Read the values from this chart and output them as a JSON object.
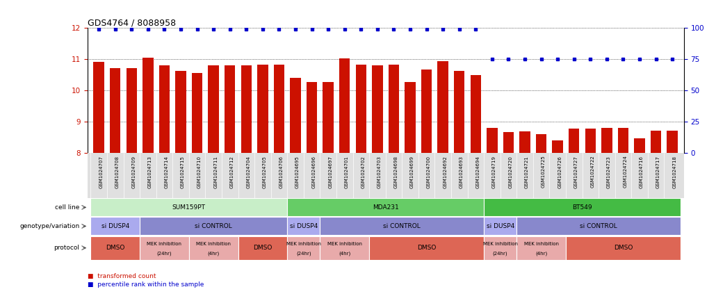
{
  "title": "GDS4764 / 8088958",
  "samples": [
    "GSM1024707",
    "GSM1024708",
    "GSM1024709",
    "GSM1024713",
    "GSM1024714",
    "GSM1024715",
    "GSM1024710",
    "GSM1024711",
    "GSM1024712",
    "GSM1024704",
    "GSM1024705",
    "GSM1024706",
    "GSM1024695",
    "GSM1024696",
    "GSM1024697",
    "GSM1024701",
    "GSM1024702",
    "GSM1024703",
    "GSM1024698",
    "GSM1024699",
    "GSM1024700",
    "GSM1024692",
    "GSM1024693",
    "GSM1024694",
    "GSM1024719",
    "GSM1024720",
    "GSM1024721",
    "GSM1024725",
    "GSM1024726",
    "GSM1024727",
    "GSM1024722",
    "GSM1024723",
    "GSM1024724",
    "GSM1024716",
    "GSM1024717",
    "GSM1024718"
  ],
  "bar_values": [
    10.92,
    10.72,
    10.72,
    11.05,
    10.8,
    10.62,
    10.57,
    10.8,
    10.8,
    10.8,
    10.82,
    10.82,
    10.4,
    10.28,
    10.28,
    11.02,
    10.82,
    10.8,
    10.82,
    10.28,
    10.68,
    10.95,
    10.62,
    10.5,
    8.82,
    8.68,
    8.7,
    8.62,
    8.4,
    8.78,
    8.78,
    8.82,
    8.82,
    8.48,
    8.72,
    8.72
  ],
  "percentile_values": [
    99,
    99,
    99,
    99,
    99,
    99,
    99,
    99,
    99,
    99,
    99,
    99,
    99,
    99,
    99,
    99,
    99,
    99,
    99,
    99,
    99,
    99,
    99,
    99,
    75,
    75,
    75,
    75,
    75,
    75,
    75,
    75,
    75,
    75,
    75,
    75
  ],
  "bar_color": "#cc1100",
  "dot_color": "#0000cc",
  "ylim_left": [
    8,
    12
  ],
  "ylim_right": [
    0,
    100
  ],
  "yticks_left": [
    8,
    9,
    10,
    11,
    12
  ],
  "yticks_right": [
    0,
    25,
    50,
    75,
    100
  ],
  "cell_lines": [
    {
      "label": "SUM159PT",
      "start": 0,
      "end": 11,
      "color": "#c8eec8"
    },
    {
      "label": "MDA231",
      "start": 12,
      "end": 23,
      "color": "#66cc66"
    },
    {
      "label": "BT549",
      "start": 24,
      "end": 35,
      "color": "#44bb44"
    }
  ],
  "genotypes": [
    {
      "label": "si DUSP4",
      "start": 0,
      "end": 2,
      "color": "#aaaaee"
    },
    {
      "label": "si CONTROL",
      "start": 3,
      "end": 11,
      "color": "#8888cc"
    },
    {
      "label": "si DUSP4",
      "start": 12,
      "end": 13,
      "color": "#aaaaee"
    },
    {
      "label": "si CONTROL",
      "start": 14,
      "end": 23,
      "color": "#8888cc"
    },
    {
      "label": "si DUSP4",
      "start": 24,
      "end": 25,
      "color": "#aaaaee"
    },
    {
      "label": "si CONTROL",
      "start": 26,
      "end": 35,
      "color": "#8888cc"
    }
  ],
  "protocols": [
    {
      "label": "DMSO",
      "start": 0,
      "end": 2,
      "color": "#dd6655"
    },
    {
      "label": "MEK inhibition\n(24hr)",
      "start": 3,
      "end": 5,
      "color": "#e8aaaa"
    },
    {
      "label": "MEK inhibition\n(4hr)",
      "start": 6,
      "end": 8,
      "color": "#e8aaaa"
    },
    {
      "label": "DMSO",
      "start": 9,
      "end": 11,
      "color": "#dd6655"
    },
    {
      "label": "MEK inhibition\n(24hr)",
      "start": 12,
      "end": 13,
      "color": "#e8aaaa"
    },
    {
      "label": "MEK inhibition\n(4hr)",
      "start": 14,
      "end": 16,
      "color": "#e8aaaa"
    },
    {
      "label": "DMSO",
      "start": 17,
      "end": 23,
      "color": "#dd6655"
    },
    {
      "label": "MEK inhibition\n(24hr)",
      "start": 24,
      "end": 25,
      "color": "#e8aaaa"
    },
    {
      "label": "MEK inhibition\n(4hr)",
      "start": 26,
      "end": 28,
      "color": "#e8aaaa"
    },
    {
      "label": "DMSO",
      "start": 29,
      "end": 35,
      "color": "#dd6655"
    }
  ],
  "row_labels": [
    "cell line",
    "genotype/variation",
    "protocol"
  ],
  "xtick_bg": "#e0e0e0"
}
